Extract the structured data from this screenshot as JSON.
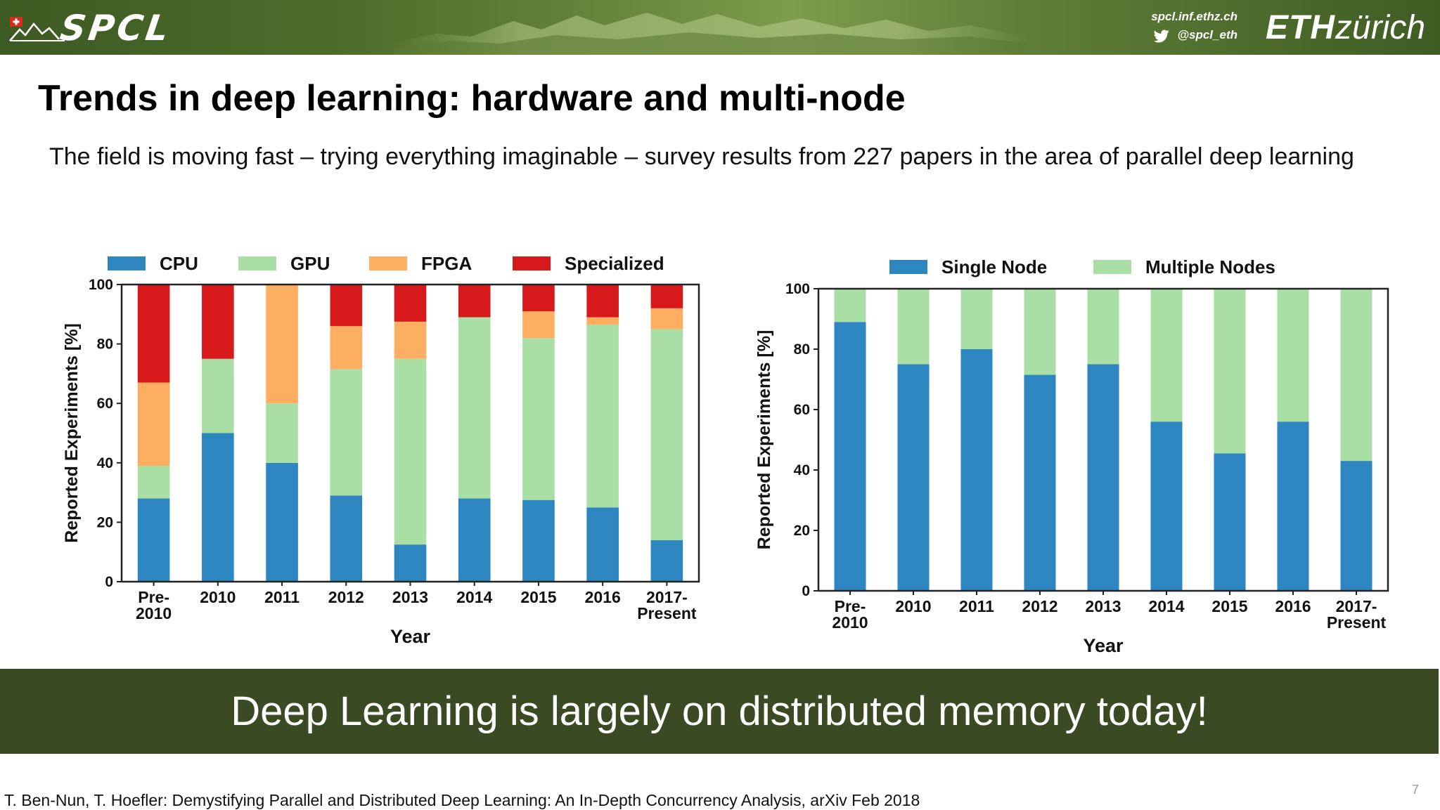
{
  "header": {
    "logo_text": "SPCL",
    "site": "spcl.inf.ethz.ch",
    "twitter": "@spcl_eth",
    "eth_bold": "ETH",
    "eth_light": "zürich",
    "colors": {
      "band": "#4e6e2c",
      "text": "#ffffff"
    }
  },
  "slide": {
    "title": "Trends in deep learning: hardware and multi-node",
    "subtitle": "The field is moving fast – trying everything imaginable – survey results from 227 papers in the area of parallel deep learning",
    "banner": "Deep Learning is largely on distributed memory today!",
    "citation": "T. Ben-Nun, T. Hoefler: Demystifying Parallel and Distributed Deep Learning: An In-Depth Concurrency Analysis, arXiv Feb 2018",
    "page_number": "7"
  },
  "chart_data": [
    {
      "type": "bar",
      "stacked": true,
      "categories": [
        [
          "Pre-",
          "2010"
        ],
        [
          "2010"
        ],
        [
          "2011"
        ],
        [
          "2012"
        ],
        [
          "2013"
        ],
        [
          "2014"
        ],
        [
          "2015"
        ],
        [
          "2016"
        ],
        [
          "2017-",
          "Present"
        ]
      ],
      "series": [
        {
          "name": "CPU",
          "color": "#2e86c1",
          "values": [
            28,
            50,
            40,
            29,
            12.5,
            28,
            27.5,
            25,
            14
          ]
        },
        {
          "name": "GPU",
          "color": "#a9dfa4",
          "values": [
            11,
            25,
            20,
            42.5,
            62.5,
            61,
            54.5,
            61.5,
            71
          ]
        },
        {
          "name": "FPGA",
          "color": "#fdae61",
          "values": [
            28,
            0,
            40,
            14.5,
            12.5,
            0,
            9,
            2.5,
            7
          ]
        },
        {
          "name": "Specialized",
          "color": "#d7191c",
          "values": [
            33,
            25,
            0,
            14,
            12.5,
            11,
            9,
            11,
            8
          ]
        }
      ],
      "xlabel": "Year",
      "ylabel": "Reported Experiments [%]",
      "ylim": [
        0,
        100
      ],
      "yticks": [
        0,
        20,
        40,
        60,
        80,
        100
      ],
      "grid": false,
      "legend": "top"
    },
    {
      "type": "bar",
      "stacked": true,
      "categories": [
        [
          "Pre-",
          "2010"
        ],
        [
          "2010"
        ],
        [
          "2011"
        ],
        [
          "2012"
        ],
        [
          "2013"
        ],
        [
          "2014"
        ],
        [
          "2015"
        ],
        [
          "2016"
        ],
        [
          "2017-",
          "Present"
        ]
      ],
      "series": [
        {
          "name": "Single Node",
          "color": "#2e86c1",
          "values": [
            89,
            75,
            80,
            71.5,
            75,
            56,
            45.5,
            56,
            43
          ]
        },
        {
          "name": "Multiple Nodes",
          "color": "#a9dfa4",
          "values": [
            11,
            25,
            20,
            28.5,
            25,
            44,
            54.5,
            44,
            57
          ]
        }
      ],
      "xlabel": "Year",
      "ylabel": "Reported Experiments [%]",
      "ylim": [
        0,
        100
      ],
      "yticks": [
        0,
        20,
        40,
        60,
        80,
        100
      ],
      "grid": false,
      "legend": "top"
    }
  ]
}
